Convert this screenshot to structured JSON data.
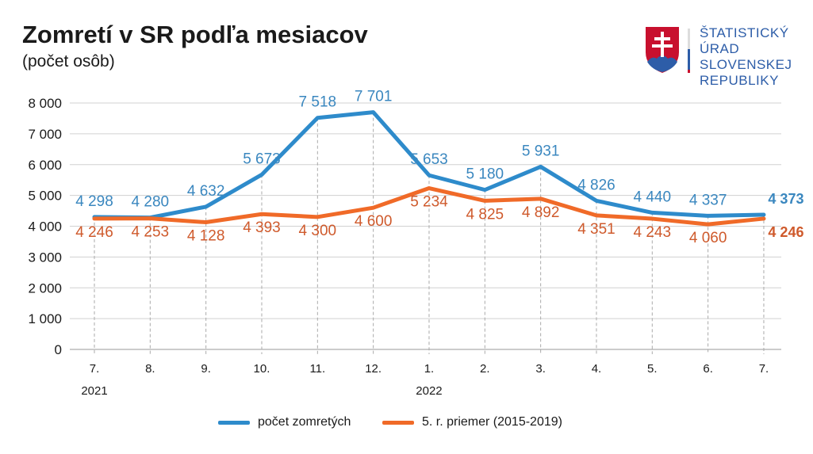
{
  "header": {
    "title": "Zomretí v SR podľa mesiacov",
    "subtitle": "(počet osôb)"
  },
  "logo": {
    "lines": [
      "ŠTATISTICKÝ",
      "ÚRAD",
      "SLOVENSKEJ",
      "REPUBLIKY"
    ]
  },
  "chart_data": {
    "type": "line",
    "categories": [
      "7.",
      "8.",
      "9.",
      "10.",
      "11.",
      "12.",
      "1.",
      "2.",
      "3.",
      "4.",
      "5.",
      "6.",
      "7."
    ],
    "year_labels": [
      {
        "index": 0,
        "label": "2021"
      },
      {
        "index": 6,
        "label": "2022"
      }
    ],
    "ylim": [
      0,
      8000
    ],
    "yticks": [
      0,
      1000,
      2000,
      3000,
      4000,
      5000,
      6000,
      7000,
      8000
    ],
    "ytick_labels": [
      "0",
      "1 000",
      "2 000",
      "3 000",
      "4 000",
      "5 000",
      "6 000",
      "7 000",
      "8 000"
    ],
    "grid": true,
    "legend_position": "bottom",
    "series": [
      {
        "name": "počet zomretých",
        "color": "#2e8bcb",
        "label_color": "#3a87bf",
        "values": [
          4298,
          4280,
          4632,
          5673,
          7518,
          7701,
          5653,
          5180,
          5931,
          4826,
          4440,
          4337,
          4373
        ],
        "labels": [
          "4 298",
          "4 280",
          "4 632",
          "5 673",
          "7 518",
          "7 701",
          "5 653",
          "5 180",
          "5 931",
          "4 826",
          "4 440",
          "4 337",
          "4 373"
        ]
      },
      {
        "name": "5. r. priemer (2015-2019)",
        "color": "#f06a28",
        "label_color": "#cf5a2c",
        "values": [
          4246,
          4253,
          4128,
          4393,
          4300,
          4600,
          5234,
          4825,
          4892,
          4351,
          4243,
          4060,
          4246
        ],
        "labels": [
          "4 246",
          "4 253",
          "4 128",
          "4 393",
          "4 300",
          "4 600",
          "5 234",
          "4 825",
          "4 892",
          "4 351",
          "4 243",
          "4 060",
          "4 246"
        ]
      }
    ]
  }
}
